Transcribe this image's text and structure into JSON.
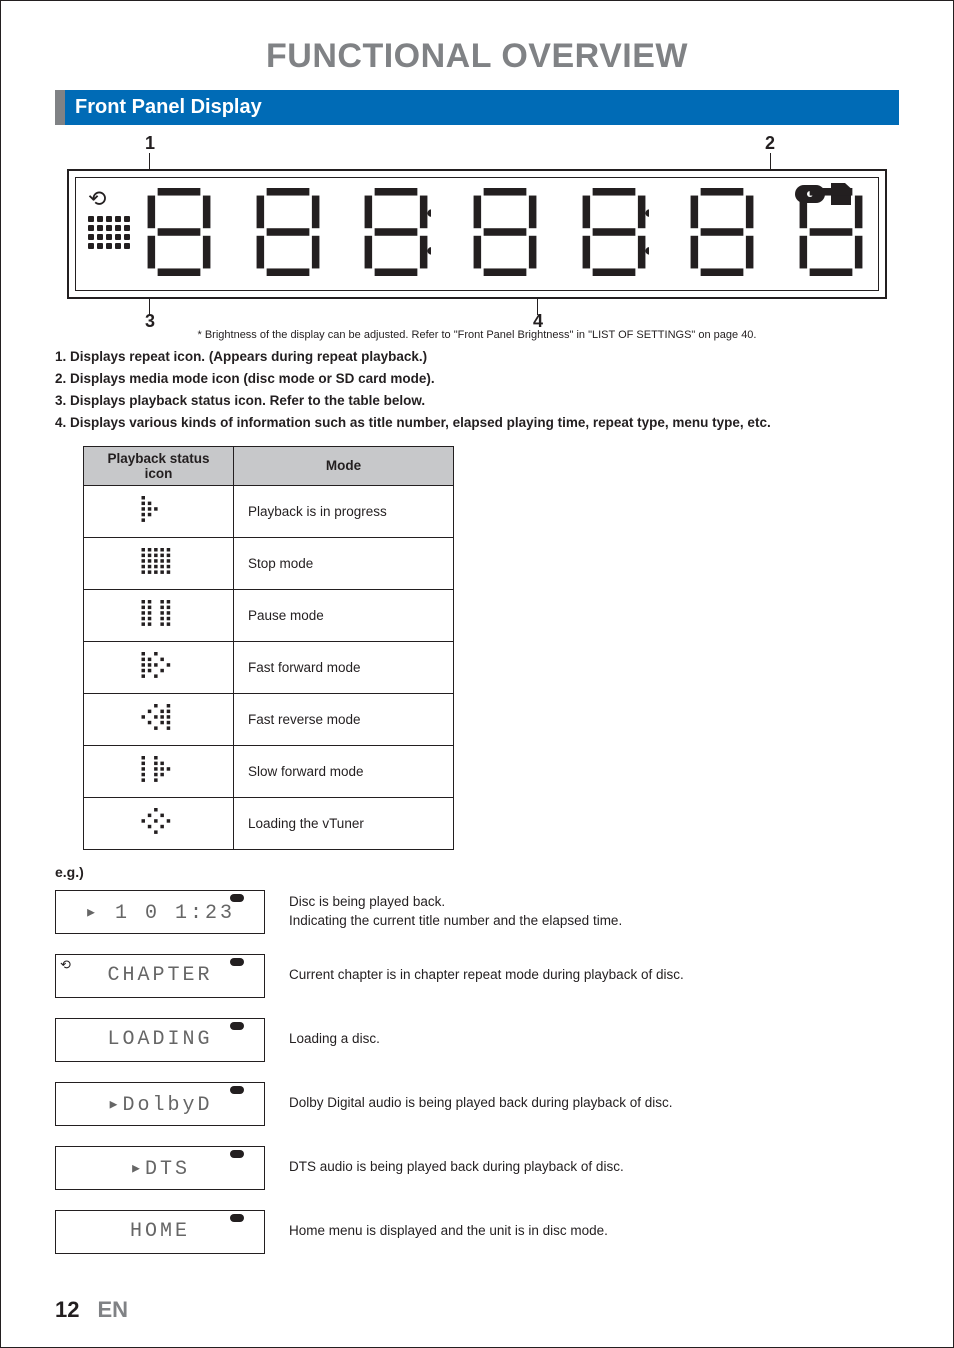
{
  "page": {
    "title": "FUNCTIONAL OVERVIEW",
    "section": "Front Panel Display",
    "footnote": "* Brightness of the display can be adjusted. Refer to \"Front Panel Brightness\" in \"LIST OF SETTINGS\" on page 40.",
    "number": "12",
    "lang": "EN"
  },
  "callouts": {
    "c1": "1",
    "c2": "2",
    "c3": "3",
    "c4": "4"
  },
  "numbered": {
    "n1": "1.  Displays repeat icon. (Appears during repeat playback.)",
    "n2": "2.  Displays media mode icon (disc mode or SD card mode).",
    "n3": "3.  Displays playback status icon. Refer to the table below.",
    "n4": "4.  Displays various kinds of information such as title number, elapsed playing time, repeat type, menu type, etc."
  },
  "table": {
    "header_icon": "Playback status icon",
    "header_mode": "Mode",
    "rows": [
      {
        "icon": "play",
        "mode": "Playback is in progress"
      },
      {
        "icon": "stop",
        "mode": "Stop mode"
      },
      {
        "icon": "pause",
        "mode": "Pause mode"
      },
      {
        "icon": "ffwd",
        "mode": "Fast forward mode"
      },
      {
        "icon": "frev",
        "mode": "Fast reverse mode"
      },
      {
        "icon": "slow",
        "mode": "Slow forward mode"
      },
      {
        "icon": "load",
        "mode": "Loading the vTuner"
      }
    ]
  },
  "eg": {
    "label": "e.g.)",
    "rows": [
      {
        "display": "▸ 1   0 1:23",
        "show_disc": true,
        "show_repeat": false,
        "desc": "Disc is being played back.\nIndicating the current title number and the elapsed time."
      },
      {
        "display": "CHAPTER",
        "show_disc": true,
        "show_repeat": true,
        "desc": "Current chapter is in chapter repeat mode during playback of disc."
      },
      {
        "display": "LOADING",
        "show_disc": true,
        "show_repeat": false,
        "desc": "Loading a disc."
      },
      {
        "display": "▸DolbyD",
        "show_disc": true,
        "show_repeat": false,
        "desc": "Dolby Digital audio is being played back during playback of disc."
      },
      {
        "display": "▸DTS",
        "show_disc": true,
        "show_repeat": false,
        "desc": "DTS audio is being played back during playback of disc."
      },
      {
        "display": "HOME",
        "show_disc": true,
        "show_repeat": false,
        "desc": "Home menu is displayed and the unit is in disc mode."
      }
    ]
  },
  "colors": {
    "accent": "#006bb6",
    "grey": "#808285",
    "table_header": "#c7c8ca",
    "text": "#231f20"
  }
}
